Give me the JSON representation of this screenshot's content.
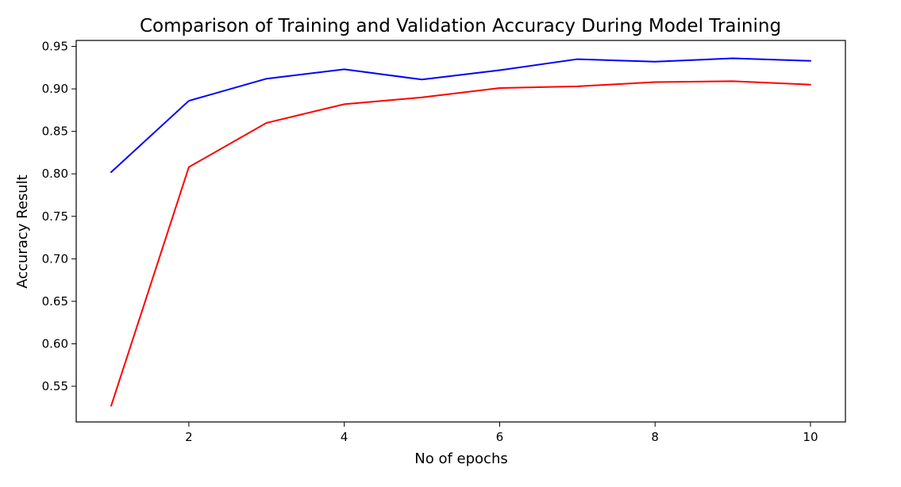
{
  "chart_data": {
    "type": "line",
    "title": "Comparison of Training and Validation Accuracy During Model Training",
    "xlabel": "No of epochs",
    "ylabel": "Accuracy Result",
    "x": [
      1,
      2,
      3,
      4,
      5,
      6,
      7,
      8,
      9,
      10
    ],
    "xticks": [
      2,
      4,
      6,
      8,
      10
    ],
    "xtick_labels": [
      "2",
      "4",
      "6",
      "8",
      "10"
    ],
    "yticks": [
      0.55,
      0.6,
      0.65,
      0.7,
      0.75,
      0.8,
      0.85,
      0.9,
      0.95
    ],
    "ytick_labels": [
      "0.55",
      "0.60",
      "0.65",
      "0.70",
      "0.75",
      "0.80",
      "0.85",
      "0.90",
      "0.95"
    ],
    "xlim": [
      0.55,
      10.45
    ],
    "ylim": [
      0.508,
      0.957
    ],
    "grid": false,
    "legend": "none",
    "series": [
      {
        "color": "#0000ff",
        "values": [
          0.802,
          0.886,
          0.912,
          0.923,
          0.911,
          0.922,
          0.935,
          0.932,
          0.936,
          0.933
        ]
      },
      {
        "color": "#ff0000",
        "values": [
          0.527,
          0.808,
          0.86,
          0.882,
          0.89,
          0.901,
          0.903,
          0.908,
          0.909,
          0.905
        ]
      }
    ]
  }
}
